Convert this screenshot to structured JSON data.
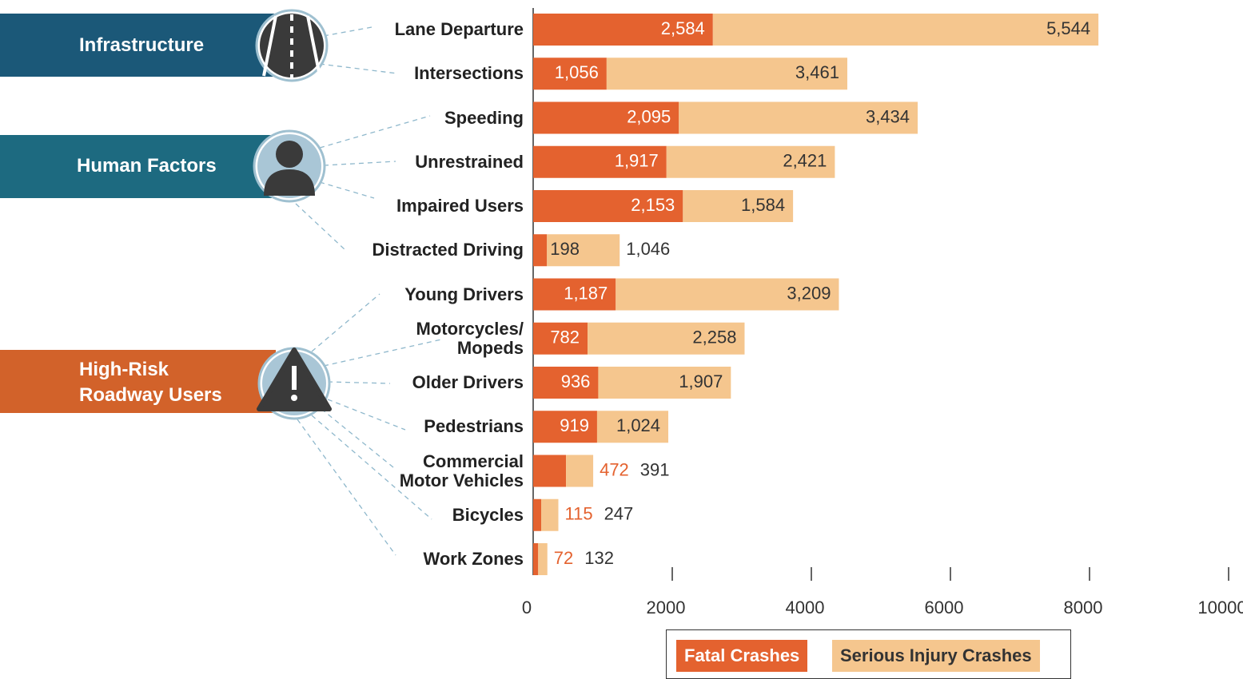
{
  "chart_data": {
    "type": "stacked-bar-horizontal",
    "groups": [
      {
        "name": "Infrastructure",
        "color": "#1b5878",
        "rows": [
          0,
          1
        ]
      },
      {
        "name": "Human Factors",
        "color": "#1d6a80",
        "rows": [
          2,
          3,
          4,
          5
        ]
      },
      {
        "name": "High-Risk\nRoadway Users",
        "color": "#d2622a",
        "rows": [
          6,
          7,
          8,
          9,
          10,
          11,
          12
        ]
      }
    ],
    "categories": [
      "Lane Departure",
      "Intersections",
      "Speeding",
      "Unrestrained",
      "Impaired Users",
      "Distracted Driving",
      "Young Drivers",
      "Motorcycles/\nMopeds",
      "Older Drivers",
      "Pedestrians",
      "Commercial\nMotor Vehicles",
      "Bicycles",
      "Work Zones"
    ],
    "series": [
      {
        "name": "Fatal Crashes",
        "color": "#e4622f",
        "values": [
          2584,
          1056,
          2095,
          1917,
          2153,
          198,
          1187,
          782,
          936,
          919,
          472,
          115,
          72
        ],
        "value_labels": [
          "2,584",
          "1,056",
          "2,095",
          "1,917",
          "2,153",
          "198",
          "1,187",
          "782",
          "936",
          "919",
          "472",
          "115",
          "72"
        ]
      },
      {
        "name": "Serious Injury Crashes",
        "color": "#f5c68e",
        "values": [
          5544,
          3461,
          3434,
          2421,
          1584,
          1046,
          3209,
          2258,
          1907,
          1024,
          391,
          247,
          132
        ],
        "value_labels": [
          "5,544",
          "3,461",
          "3,434",
          "2,421",
          "1,584",
          "1,046",
          "3,209",
          "2,258",
          "1,907",
          "1,024",
          "391",
          "247",
          "132"
        ]
      }
    ],
    "xlim": [
      0,
      10000
    ],
    "xticks": [
      0,
      2000,
      4000,
      6000,
      8000,
      10000
    ]
  }
}
